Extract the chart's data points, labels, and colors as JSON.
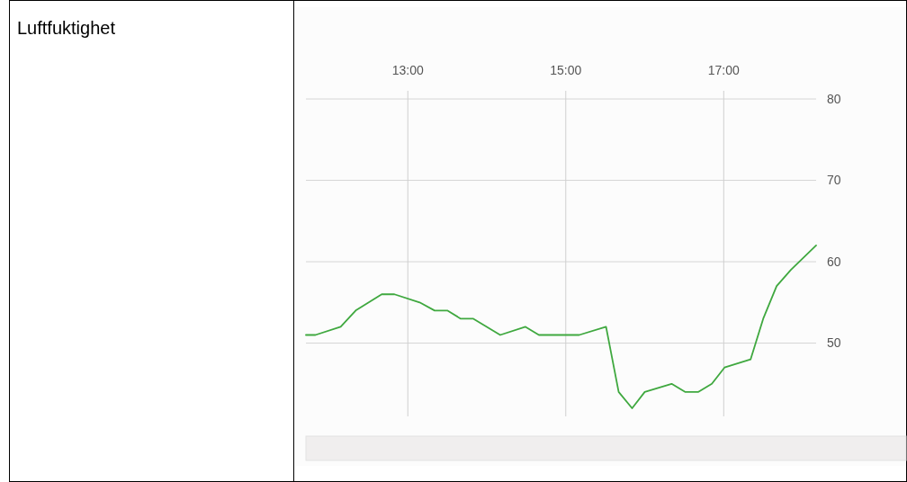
{
  "chart_data": {
    "type": "line",
    "title": "Luftfuktighet",
    "x": [
      11.71,
      11.83,
      12.15,
      12.34,
      12.67,
      12.83,
      13.15,
      13.34,
      13.5,
      13.67,
      13.83,
      14.17,
      14.49,
      14.66,
      15.17,
      15.51,
      15.67,
      15.84,
      16.0,
      16.34,
      16.51,
      16.68,
      16.85,
      17.01,
      17.34,
      17.5,
      17.67,
      17.85,
      18.17
    ],
    "series": [
      {
        "color": "#3fa83f",
        "values": [
          51,
          51,
          52,
          54,
          56,
          56,
          55,
          54,
          54,
          53,
          53,
          51,
          52,
          51,
          51,
          52,
          44,
          42,
          44,
          45,
          44,
          44,
          45,
          47,
          48,
          53,
          57,
          59,
          62
        ]
      }
    ],
    "xlim": [
      11.71,
      18.17
    ],
    "ylim": [
      41,
      81
    ],
    "xticks": [
      {
        "value": 13,
        "label": "13:00"
      },
      {
        "value": 15,
        "label": "15:00"
      },
      {
        "value": 17,
        "label": "17:00"
      }
    ],
    "yticks": [
      50,
      60,
      70,
      80
    ],
    "grid": true,
    "marker": "none",
    "line_style": "solid"
  }
}
